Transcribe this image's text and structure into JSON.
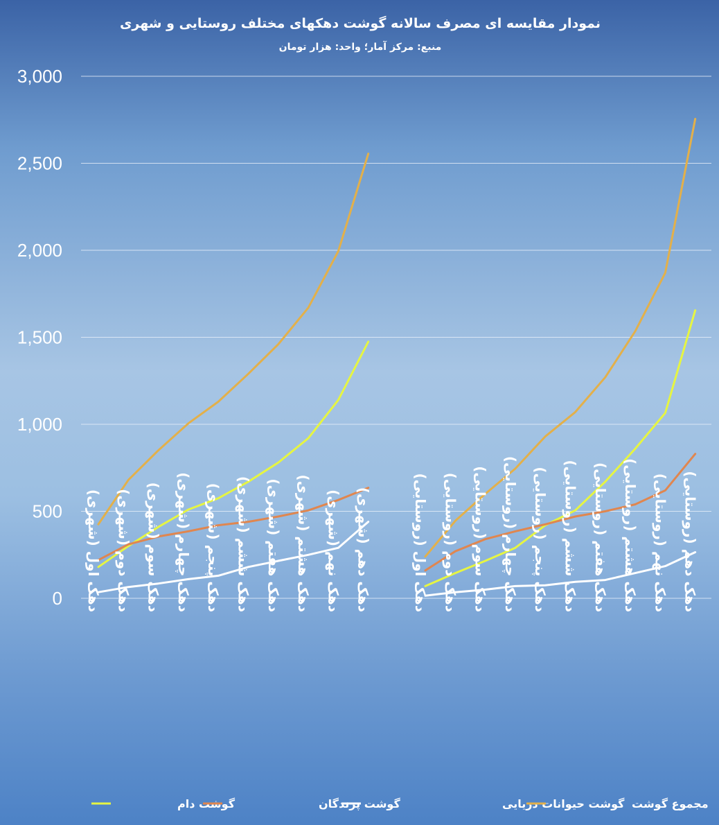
{
  "chart_data": {
    "type": "line",
    "title": "نمودار مقایسه ای مصرف سالانه گوشت دهکهای مختلف روستایی و شهری",
    "subtitle": "منبع: مرکز آمار؛ واحد: هزار تومان",
    "ylim": [
      0,
      3000
    ],
    "yticks": [
      "0",
      "500",
      "1,000",
      "1,500",
      "2,000",
      "2,500",
      "3,000"
    ],
    "grid": true,
    "legend_position": "bottom",
    "groups": [
      {
        "categories": [
          "دهک اول (شهری)",
          "دهک دوم (شهری)",
          "دهک سوم (شهری)",
          "دهک چهارم (شهری)",
          "دهک پنجم (شهری)",
          "دهک ششم (شهری)",
          "دهک هفتم (شهری)",
          "دهک هشتم (شهری)",
          "دهک نهم (شهری)",
          "دهک دهم (شهری)"
        ],
        "series": [
          {
            "name": "گوشت دام",
            "color": "#e6f542",
            "values": [
              180,
              300,
              410,
              510,
              575,
              670,
              780,
              920,
              1140,
              1475
            ]
          },
          {
            "name": "گوشت پرندگان",
            "color": "#e0864f",
            "values": [
              220,
              310,
              355,
              385,
              420,
              440,
              470,
              505,
              565,
              635
            ]
          },
          {
            "name": "گوشت حیوانات دریایی",
            "color": "#ffffff",
            "values": [
              35,
              65,
              85,
              110,
              130,
              180,
              215,
              250,
              290,
              440
            ]
          },
          {
            "name": "مجموع گوشت",
            "color": "#e3b04a",
            "values": [
              425,
              680,
              850,
              1005,
              1130,
              1290,
              1460,
              1670,
              1995,
              2555
            ]
          }
        ]
      },
      {
        "categories": [
          "دهک اول (روستایی)",
          "دهک دوم (روستایی)",
          "دهک سوم (روستایی)",
          "دهک چهارم (روستایی)",
          "دهک پنجم (روستایی)",
          "دهک ششم (روستایی)",
          "دهک هفتم (روستایی)",
          "دهک هشتم (روستایی)",
          "دهک نهم (روستایی)",
          "دهک دهم (روستایی)"
        ],
        "series": [
          {
            "name": "گوشت دام",
            "color": "#e6f542",
            "values": [
              70,
              145,
              215,
              290,
              420,
              505,
              670,
              860,
              1065,
              1655
            ]
          },
          {
            "name": "گوشت پرندگان",
            "color": "#e0864f",
            "values": [
              160,
              270,
              340,
              385,
              425,
              470,
              500,
              540,
              620,
              830
            ]
          },
          {
            "name": "گوشت حیوانات دریایی",
            "color": "#ffffff",
            "values": [
              15,
              35,
              50,
              70,
              75,
              95,
              105,
              145,
              185,
              265
            ]
          },
          {
            "name": "مجموع گوشت",
            "color": "#e3b04a",
            "values": [
              240,
              445,
              600,
              745,
              930,
              1070,
              1270,
              1535,
              1870,
              2755
            ]
          }
        ]
      }
    ],
    "legend": [
      {
        "name": "گوشت دام",
        "color": "#e6f542"
      },
      {
        "name": "گوشت پرندگان",
        "color": "#e0864f"
      },
      {
        "name": "گوشت حیوانات دریایی",
        "color": "#ffffff"
      },
      {
        "name": "مجموع گوشت",
        "color": "#e3b04a"
      }
    ]
  }
}
